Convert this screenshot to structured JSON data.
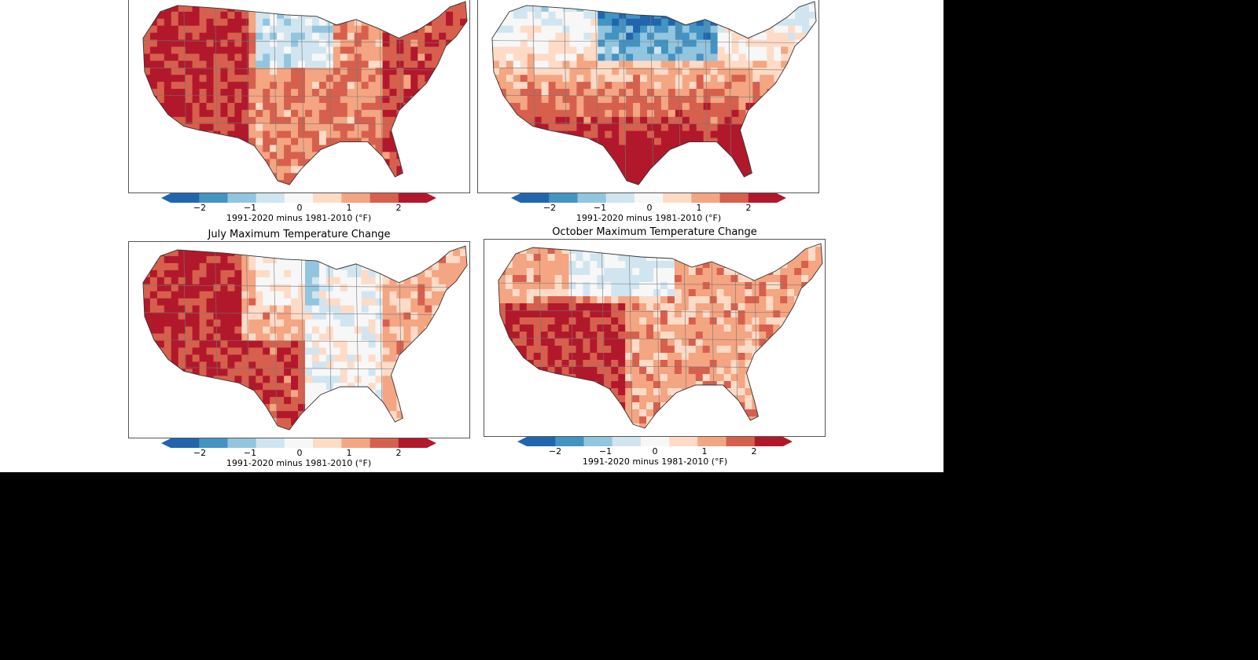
{
  "panels": [
    {
      "title": "",
      "colorbar_label": "1991-2020 minus 1981-2010 (°F)",
      "tick_labels": [
        "−2",
        "−1",
        "0",
        "1",
        "2"
      ],
      "pattern": "warm-west-east-cool-north-plains"
    },
    {
      "title": "",
      "colorbar_label": "1991-2020 minus 1981-2010 (°F)",
      "tick_labels": [
        "−2",
        "−1",
        "0",
        "1",
        "2"
      ],
      "pattern": "cold-north-warm-south"
    },
    {
      "title": "July Maximum Temperature Change",
      "colorbar_label": "1991-2020 minus 1981-2010 (°F)",
      "tick_labels": [
        "−2",
        "−1",
        "0",
        "1",
        "2"
      ],
      "pattern": "warm-west-cool-central"
    },
    {
      "title": "October Maximum Temperature Change",
      "colorbar_label": "1991-2020 minus 1981-2010 (°F)",
      "tick_labels": [
        "−2",
        "−1",
        "0",
        "1",
        "2"
      ],
      "pattern": "warm-southwest-cool-north"
    }
  ],
  "colors": {
    "scale": [
      "#2166ac",
      "#4393c3",
      "#92c5de",
      "#d1e5f0",
      "#f7f7f7",
      "#fddbc7",
      "#f4a582",
      "#d6604d",
      "#b2182b"
    ],
    "border": "#555555",
    "background_outside": "#000000"
  }
}
